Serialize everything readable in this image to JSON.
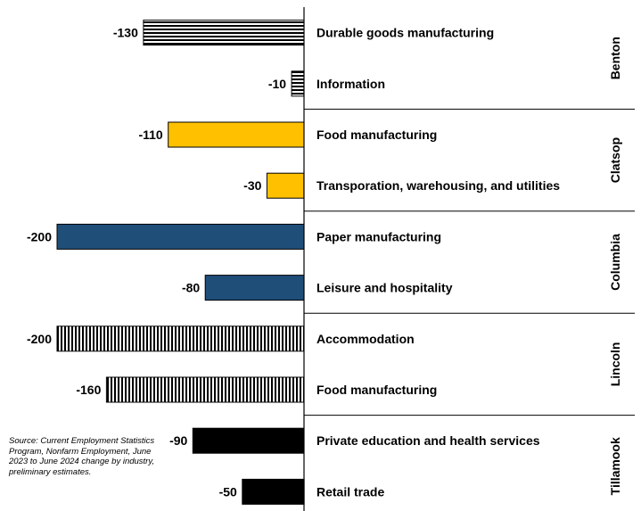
{
  "chart_data": {
    "type": "bar",
    "orientation": "horizontal",
    "title": "",
    "xlabel": "",
    "ylabel": "",
    "groups": [
      {
        "name": "Benton",
        "color": "#000000",
        "pattern": "horizontal-stripes",
        "bars": [
          {
            "label": "Durable goods manufacturing",
            "value": -130,
            "value_label": "-130"
          },
          {
            "label": "Information",
            "value": -10,
            "value_label": "-10"
          }
        ]
      },
      {
        "name": "Clatsop",
        "color": "#FFC000",
        "pattern": "solid",
        "bars": [
          {
            "label": "Food manufacturing",
            "value": -110,
            "value_label": "-110"
          },
          {
            "label": "Transporation, warehousing, and utilities",
            "value": -30,
            "value_label": "-30"
          }
        ]
      },
      {
        "name": "Columbia",
        "color": "#1F4E79",
        "pattern": "solid",
        "bars": [
          {
            "label": "Paper manufacturing",
            "value": -200,
            "value_label": "-200"
          },
          {
            "label": "Leisure and hospitality",
            "value": -80,
            "value_label": "-80"
          }
        ]
      },
      {
        "name": "Lincoln",
        "color": "#000000",
        "pattern": "vertical-stripes",
        "bars": [
          {
            "label": "Accommodation",
            "value": -200,
            "value_label": "-200"
          },
          {
            "label": "Food manufacturing",
            "value": -160,
            "value_label": "-160"
          }
        ]
      },
      {
        "name": "Tillamook",
        "color": "#000000",
        "pattern": "solid",
        "bars": [
          {
            "label": "Private education and health services",
            "value": -90,
            "value_label": "-90"
          },
          {
            "label": "Retail trade",
            "value": -50,
            "value_label": "-50"
          }
        ]
      }
    ],
    "xlim": [
      -200,
      0
    ],
    "grid": false,
    "legend": "none"
  },
  "source_note": "Source: Current Employment Statistics Program, Nonfarm Employment, June 2023 to June 2024 change by industry, preliminary estimates."
}
